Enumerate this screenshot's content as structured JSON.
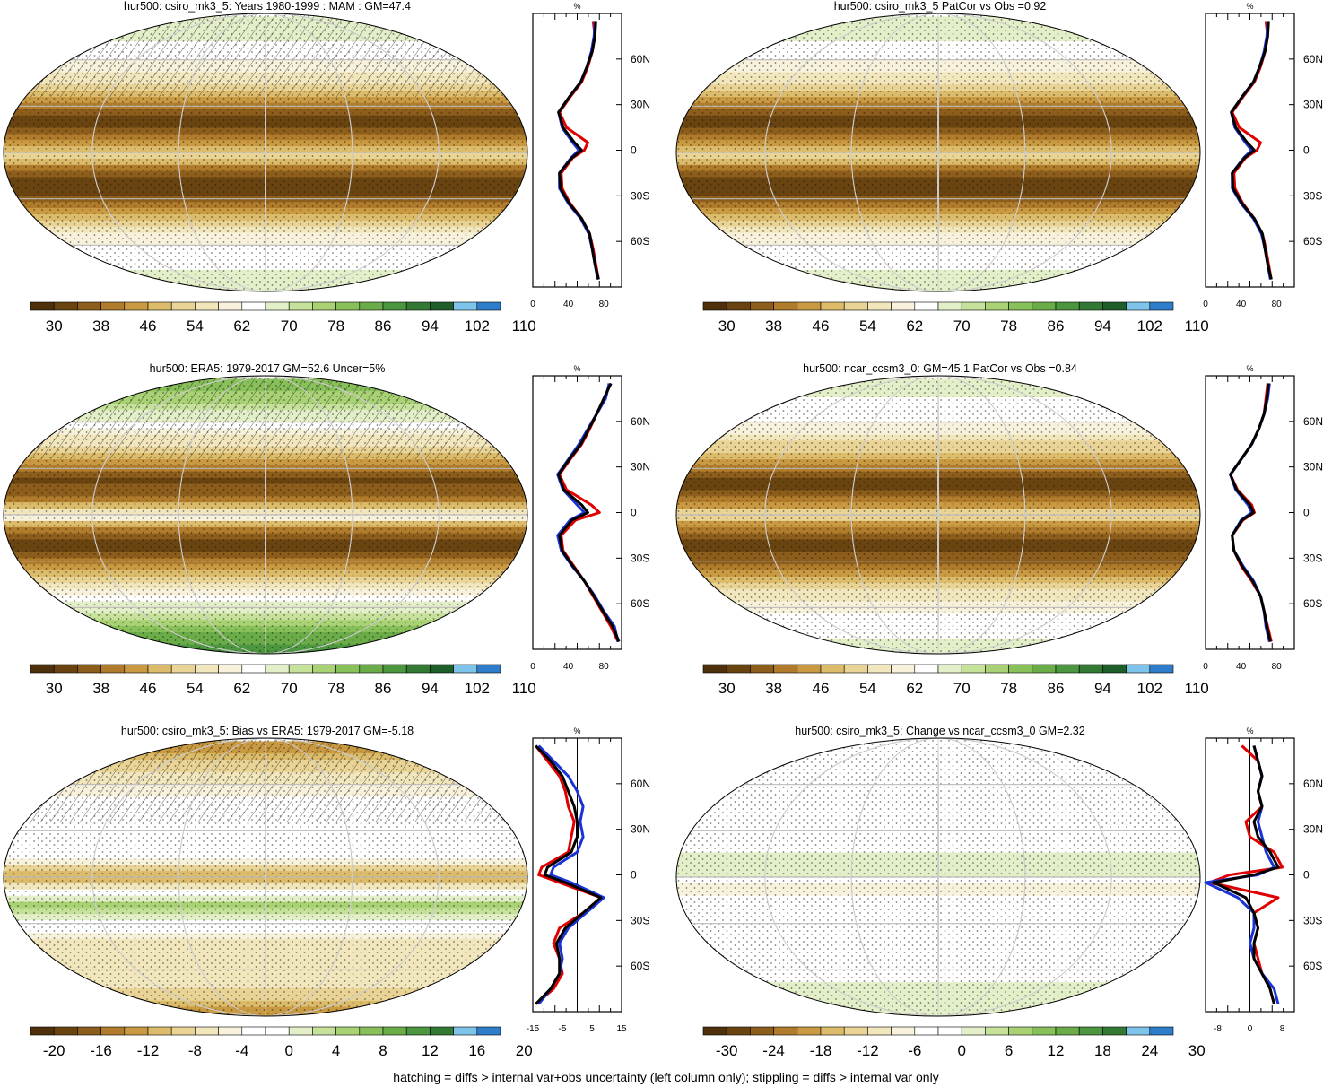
{
  "footer": "hatching = diffs > internal var+obs uncertainty (left column only); stippling = diffs > internal var only",
  "palettes": {
    "abs": [
      "#4e300c",
      "#6a4410",
      "#8d5d1c",
      "#b07c2c",
      "#c99a42",
      "#dcbc6a",
      "#e9d395",
      "#f2e6bd",
      "#f8f2dc",
      "#ffffff",
      "#e3efc8",
      "#c6e29a",
      "#a9d275",
      "#88c05a",
      "#6aac48",
      "#4c9640",
      "#327a34",
      "#1e5e2a",
      "#7ec4ea",
      "#2e7dca"
    ],
    "bias": [
      "#4e300c",
      "#6a4410",
      "#8d5d1c",
      "#b07c2c",
      "#c99a42",
      "#dcbc6a",
      "#e9d395",
      "#f2e6bd",
      "#f8f2dc",
      "#ffffff",
      "#ffffff",
      "#e3efc8",
      "#c6e29a",
      "#a9d275",
      "#88c05a",
      "#6aac48",
      "#4c9640",
      "#327a34",
      "#7ec4ea",
      "#2e7dca"
    ]
  },
  "chart_data": [
    {
      "type": "heatmap",
      "title": "hur500: csiro_mk3_5: Years 1980-1999 : MAM : GM=47.4",
      "colorbar_ticks": [
        "30",
        "38",
        "46",
        "54",
        "62",
        "70",
        "78",
        "86",
        "94",
        "102",
        "110"
      ],
      "palette": "abs",
      "map_lat_labels": [
        "60N",
        "30N",
        "0",
        "30S",
        "60S"
      ],
      "profile": {
        "unit": "%",
        "xlim": [
          0,
          100
        ],
        "xticks": [
          "0",
          "40",
          "80"
        ],
        "xticks_values": [
          0,
          40,
          80
        ],
        "zero_line": false,
        "lat": [
          85,
          75,
          65,
          55,
          45,
          35,
          25,
          15,
          5,
          0,
          -5,
          -15,
          -25,
          -35,
          -45,
          -55,
          -65,
          -75,
          -85
        ],
        "series": [
          {
            "color": "#e00000",
            "values": [
              68,
              70,
              67,
              62,
              55,
              42,
              30,
              38,
              62,
              58,
              45,
              32,
              33,
              42,
              55,
              64,
              68,
              71,
              74
            ]
          },
          {
            "color": "#1a33d6",
            "values": [
              70,
              69,
              66,
              61,
              54,
              41,
              29,
              33,
              45,
              52,
              43,
              30,
              30,
              40,
              54,
              63,
              67,
              70,
              73
            ]
          },
          {
            "color": "#000000",
            "values": [
              71,
              70,
              67,
              61,
              54,
              41,
              29,
              34,
              47,
              55,
              44,
              30,
              31,
              41,
              55,
              64,
              67,
              70,
              74
            ]
          }
        ]
      }
    },
    {
      "type": "heatmap",
      "title": "hur500: csiro_mk3_5 PatCor vs Obs =0.92",
      "colorbar_ticks": [
        "30",
        "38",
        "46",
        "54",
        "62",
        "70",
        "78",
        "86",
        "94",
        "102",
        "110"
      ],
      "palette": "abs",
      "map_lat_labels": [
        "60N",
        "30N",
        "0",
        "30S",
        "60S"
      ],
      "profile": {
        "unit": "%",
        "xlim": [
          0,
          100
        ],
        "xticks": [
          "0",
          "40",
          "80"
        ],
        "xticks_values": [
          0,
          40,
          80
        ],
        "zero_line": false,
        "lat": [
          85,
          75,
          65,
          55,
          45,
          35,
          25,
          15,
          5,
          0,
          -5,
          -15,
          -25,
          -35,
          -45,
          -55,
          -65,
          -75,
          -85
        ],
        "series": [
          {
            "color": "#e00000",
            "values": [
              68,
              70,
              67,
              62,
              55,
              42,
              30,
              38,
              62,
              58,
              45,
              32,
              33,
              42,
              55,
              64,
              68,
              71,
              74
            ]
          },
          {
            "color": "#1a33d6",
            "values": [
              70,
              69,
              66,
              61,
              54,
              41,
              29,
              33,
              45,
              52,
              43,
              30,
              30,
              40,
              54,
              63,
              67,
              70,
              73
            ]
          },
          {
            "color": "#000000",
            "values": [
              71,
              70,
              67,
              61,
              54,
              41,
              29,
              34,
              47,
              55,
              44,
              30,
              31,
              41,
              55,
              64,
              67,
              70,
              74
            ]
          }
        ]
      }
    },
    {
      "type": "heatmap",
      "title": "hur500: ERA5: 1979-2017 GM=52.6 Uncer=5%",
      "colorbar_ticks": [
        "30",
        "38",
        "46",
        "54",
        "62",
        "70",
        "78",
        "86",
        "94",
        "102",
        "110"
      ],
      "palette": "abs",
      "map_lat_labels": [
        "60N",
        "30N",
        "0",
        "30S",
        "60S"
      ],
      "profile": {
        "unit": "%",
        "xlim": [
          0,
          100
        ],
        "xticks": [
          "0",
          "40",
          "80"
        ],
        "xticks_values": [
          0,
          40,
          80
        ],
        "zero_line": false,
        "lat": [
          85,
          75,
          65,
          55,
          45,
          35,
          25,
          15,
          5,
          0,
          -5,
          -15,
          -25,
          -35,
          -45,
          -55,
          -65,
          -75,
          -85
        ],
        "series": [
          {
            "color": "#e00000",
            "values": [
              88,
              80,
              72,
              64,
              55,
              42,
              30,
              38,
              66,
              75,
              48,
              32,
              34,
              46,
              58,
              68,
              78,
              88,
              96
            ]
          },
          {
            "color": "#1a33d6",
            "values": [
              86,
              82,
              72,
              62,
              52,
              40,
              28,
              34,
              50,
              58,
              42,
              28,
              32,
              44,
              58,
              70,
              80,
              92,
              96
            ]
          },
          {
            "color": "#000000",
            "values": [
              88,
              80,
              72,
              63,
              54,
              41,
              29,
              35,
              55,
              62,
              44,
              30,
              33,
              45,
              58,
              69,
              79,
              90,
              97
            ]
          }
        ]
      }
    },
    {
      "type": "heatmap",
      "title": "hur500: ncar_ccsm3_0: GM=45.1 PatCor vs Obs =0.84",
      "colorbar_ticks": [
        "30",
        "38",
        "46",
        "54",
        "62",
        "70",
        "78",
        "86",
        "94",
        "102",
        "110"
      ],
      "palette": "abs",
      "map_lat_labels": [
        "60N",
        "30N",
        "0",
        "30S",
        "60S"
      ],
      "profile": {
        "unit": "%",
        "xlim": [
          0,
          100
        ],
        "xticks": [
          "0",
          "40",
          "80"
        ],
        "xticks_values": [
          0,
          40,
          80
        ],
        "zero_line": false,
        "lat": [
          85,
          75,
          65,
          55,
          45,
          35,
          25,
          15,
          5,
          0,
          -5,
          -15,
          -25,
          -35,
          -45,
          -55,
          -65,
          -75,
          -85
        ],
        "series": [
          {
            "color": "#e00000",
            "values": [
              70,
              68,
              66,
              60,
              52,
              40,
              28,
              36,
              52,
              55,
              42,
              30,
              32,
              40,
              52,
              62,
              66,
              70,
              74
            ]
          },
          {
            "color": "#1a33d6",
            "values": [
              72,
              70,
              66,
              60,
              52,
              40,
              28,
              34,
              48,
              52,
              40,
              30,
              32,
              42,
              54,
              62,
              66,
              68,
              72
            ]
          },
          {
            "color": "#000000",
            "values": [
              71,
              69,
              66,
              60,
              52,
              40,
              28,
              35,
              50,
              54,
              41,
              30,
              32,
              41,
              53,
              62,
              66,
              69,
              73
            ]
          }
        ]
      }
    },
    {
      "type": "heatmap",
      "title": "hur500: csiro_mk3_5: Bias vs ERA5: 1979-2017 GM=-5.18",
      "colorbar_ticks": [
        "-20",
        "-16",
        "-12",
        "-8",
        "-4",
        "0",
        "4",
        "8",
        "12",
        "16",
        "20"
      ],
      "palette": "bias",
      "map_lat_labels": [
        "60N",
        "30N",
        "0",
        "30S",
        "60S"
      ],
      "profile": {
        "unit": "%",
        "xlim": [
          -15,
          15
        ],
        "xticks": [
          "-15",
          "-5",
          "5",
          "15"
        ],
        "xticks_values": [
          -15,
          -5,
          5,
          15
        ],
        "zero_line": true,
        "lat": [
          85,
          75,
          65,
          55,
          45,
          35,
          25,
          15,
          5,
          0,
          -5,
          -15,
          -25,
          -35,
          -45,
          -55,
          -65,
          -75,
          -85
        ],
        "series": [
          {
            "color": "#e00000",
            "values": [
              -14,
              -10,
              -6,
              -4,
              -3,
              -1,
              -2,
              -3,
              -12,
              -13,
              -6,
              8,
              2,
              -6,
              -8,
              -6,
              -5,
              -8,
              -14
            ]
          },
          {
            "color": "#1a33d6",
            "values": [
              -13,
              -8,
              -3,
              0,
              2,
              1,
              2,
              0,
              -8,
              -9,
              -2,
              9,
              3,
              -3,
              -6,
              -5,
              -6,
              -9,
              -13
            ]
          },
          {
            "color": "#000000",
            "values": [
              -14,
              -9,
              -5,
              -3,
              -1,
              0,
              0,
              -2,
              -10,
              -11,
              -4,
              8,
              2,
              -4,
              -7,
              -6,
              -6,
              -9,
              -14
            ]
          }
        ]
      }
    },
    {
      "type": "heatmap",
      "title": "hur500: csiro_mk3_5: Change vs ncar_ccsm3_0 GM=2.32",
      "colorbar_ticks": [
        "-30",
        "-24",
        "-18",
        "-12",
        "-6",
        "0",
        "6",
        "12",
        "18",
        "24",
        "30"
      ],
      "palette": "bias",
      "map_lat_labels": [
        "60N",
        "30N",
        "0",
        "30S",
        "60S"
      ],
      "profile": {
        "unit": "%",
        "xlim": [
          -11,
          11
        ],
        "xticks": [
          "-8",
          "0",
          "8"
        ],
        "xticks_values": [
          -8,
          0,
          8
        ],
        "zero_line": true,
        "lat": [
          85,
          75,
          65,
          55,
          45,
          35,
          25,
          15,
          5,
          0,
          -5,
          -15,
          -25,
          -35,
          -45,
          -55,
          -65,
          -75,
          -85
        ],
        "series": [
          {
            "color": "#e00000",
            "values": [
              -2,
              2,
              3,
              2,
              3,
              -1,
              0,
              6,
              8,
              -5,
              -10,
              7,
              1,
              2,
              1,
              2,
              3,
              5,
              6
            ]
          },
          {
            "color": "#1a33d6",
            "values": [
              1,
              2,
              3,
              2,
              3,
              2,
              3,
              4,
              6,
              2,
              -11,
              -3,
              1,
              1,
              0,
              1,
              3,
              6,
              7
            ]
          },
          {
            "color": "#000000",
            "values": [
              1,
              2,
              3,
              2,
              3,
              1,
              2,
              5,
              7,
              1,
              -9,
              -1,
              1,
              2,
              1,
              1,
              3,
              5,
              6
            ]
          }
        ]
      }
    }
  ]
}
